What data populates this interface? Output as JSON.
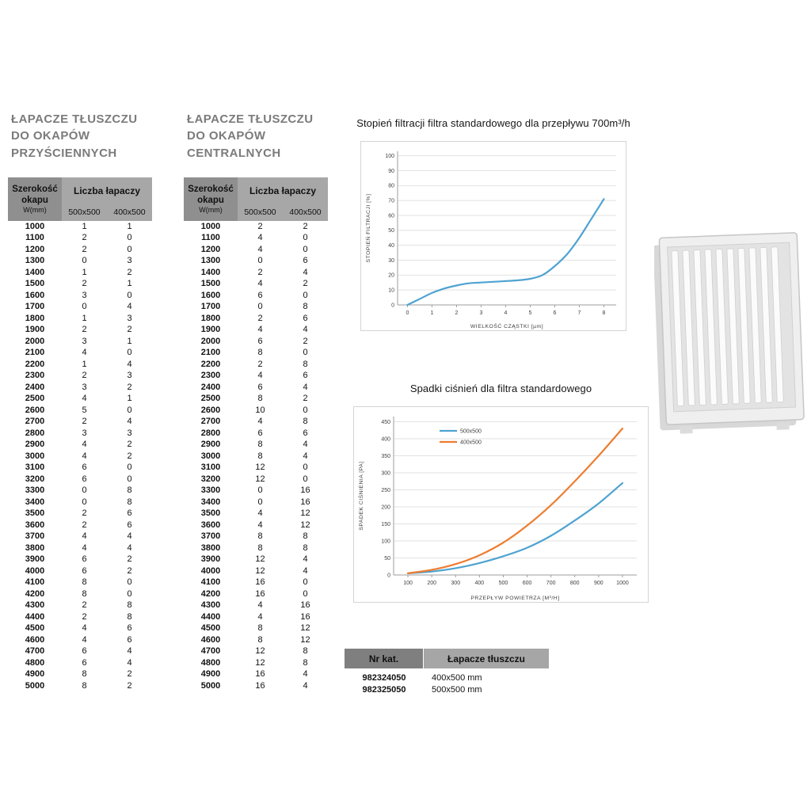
{
  "accent_colors": {
    "blue": "#4FA3D1",
    "orange": "#ED7D31",
    "header_gray_dark": "#8f8f8f",
    "header_gray": "#a7a7a7"
  },
  "left_table": {
    "title_lines": [
      "ŁAPACZE TŁUSZCZU",
      "DO OKAPÓW",
      "PRZYŚCIENNYCH"
    ],
    "header": {
      "col1_title": "Szerokość okapu",
      "col1_unit": "W(mm)",
      "group": "Liczba łapaczy",
      "sub1": "500x500",
      "sub2": "400x500"
    },
    "rows": [
      [
        1000,
        1,
        1
      ],
      [
        1100,
        2,
        0
      ],
      [
        1200,
        2,
        0
      ],
      [
        1300,
        0,
        3
      ],
      [
        1400,
        1,
        2
      ],
      [
        1500,
        2,
        1
      ],
      [
        1600,
        3,
        0
      ],
      [
        1700,
        0,
        4
      ],
      [
        1800,
        1,
        3
      ],
      [
        1900,
        2,
        2
      ],
      [
        2000,
        3,
        1
      ],
      [
        2100,
        4,
        0
      ],
      [
        2200,
        1,
        4
      ],
      [
        2300,
        2,
        3
      ],
      [
        2400,
        3,
        2
      ],
      [
        2500,
        4,
        1
      ],
      [
        2600,
        5,
        0
      ],
      [
        2700,
        2,
        4
      ],
      [
        2800,
        3,
        3
      ],
      [
        2900,
        4,
        2
      ],
      [
        3000,
        4,
        2
      ],
      [
        3100,
        6,
        0
      ],
      [
        3200,
        6,
        0
      ],
      [
        3300,
        0,
        8
      ],
      [
        3400,
        0,
        8
      ],
      [
        3500,
        2,
        6
      ],
      [
        3600,
        2,
        6
      ],
      [
        3700,
        4,
        4
      ],
      [
        3800,
        4,
        4
      ],
      [
        3900,
        6,
        2
      ],
      [
        4000,
        6,
        2
      ],
      [
        4100,
        8,
        0
      ],
      [
        4200,
        8,
        0
      ],
      [
        4300,
        2,
        8
      ],
      [
        4400,
        2,
        8
      ],
      [
        4500,
        4,
        6
      ],
      [
        4600,
        4,
        6
      ],
      [
        4700,
        6,
        4
      ],
      [
        4800,
        6,
        4
      ],
      [
        4900,
        8,
        2
      ],
      [
        5000,
        8,
        2
      ]
    ]
  },
  "center_table": {
    "title_lines": [
      "ŁAPACZE TŁUSZCZU",
      "DO OKAPÓW",
      "CENTRALNYCH"
    ],
    "header": {
      "col1_title": "Szerokość okapu",
      "col1_unit": "W(mm)",
      "group": "Liczba łapaczy",
      "sub1": "500x500",
      "sub2": "400x500"
    },
    "rows": [
      [
        1000,
        2,
        2
      ],
      [
        1100,
        4,
        0
      ],
      [
        1200,
        4,
        0
      ],
      [
        1300,
        0,
        6
      ],
      [
        1400,
        2,
        4
      ],
      [
        1500,
        4,
        2
      ],
      [
        1600,
        6,
        0
      ],
      [
        1700,
        0,
        8
      ],
      [
        1800,
        2,
        6
      ],
      [
        1900,
        4,
        4
      ],
      [
        2000,
        6,
        2
      ],
      [
        2100,
        8,
        0
      ],
      [
        2200,
        2,
        8
      ],
      [
        2300,
        4,
        6
      ],
      [
        2400,
        6,
        4
      ],
      [
        2500,
        8,
        2
      ],
      [
        2600,
        10,
        0
      ],
      [
        2700,
        4,
        8
      ],
      [
        2800,
        6,
        6
      ],
      [
        2900,
        8,
        4
      ],
      [
        3000,
        8,
        4
      ],
      [
        3100,
        12,
        0
      ],
      [
        3200,
        12,
        0
      ],
      [
        3300,
        0,
        16
      ],
      [
        3400,
        0,
        16
      ],
      [
        3500,
        4,
        12
      ],
      [
        3600,
        4,
        12
      ],
      [
        3700,
        8,
        8
      ],
      [
        3800,
        8,
        8
      ],
      [
        3900,
        12,
        4
      ],
      [
        4000,
        12,
        4
      ],
      [
        4100,
        16,
        0
      ],
      [
        4200,
        16,
        0
      ],
      [
        4300,
        4,
        16
      ],
      [
        4400,
        4,
        16
      ],
      [
        4500,
        8,
        12
      ],
      [
        4600,
        8,
        12
      ],
      [
        4700,
        12,
        8
      ],
      [
        4800,
        12,
        8
      ],
      [
        4900,
        16,
        4
      ],
      [
        5000,
        16,
        4
      ]
    ]
  },
  "chart_data": [
    {
      "type": "line",
      "title": "Stopień filtracji filtra standardowego dla przepływu 700m³/h",
      "xlabel": "WIELKOŚĆ CZĄSTKI [µm]",
      "ylabel": "STOPIEŃ FILTRACJI [%]",
      "xlim": [
        -0.4,
        8.5
      ],
      "ylim": [
        0,
        103
      ],
      "xticks": [
        0,
        1,
        2,
        3,
        4,
        5,
        6,
        7,
        8
      ],
      "yticks": [
        0,
        10,
        20,
        30,
        40,
        50,
        60,
        70,
        80,
        90,
        100
      ],
      "grid": "horizontal",
      "legend_show": false,
      "series": [
        {
          "name": "stopień filtracji",
          "color": "#4FA3D1",
          "x": [
            0,
            0.5,
            1,
            1.5,
            2,
            2.5,
            3,
            3.5,
            4,
            4.5,
            5,
            5.5,
            6,
            6.5,
            7,
            7.5,
            8
          ],
          "y": [
            0,
            4,
            8,
            11,
            13,
            14.5,
            15,
            15.5,
            16,
            16.5,
            17.5,
            20,
            26,
            34,
            45,
            58,
            71
          ]
        }
      ]
    },
    {
      "type": "line",
      "title": "Spadki ciśnień dla filtra standardowego",
      "xlabel": "PRZEPŁYW POWIETRZA [M³/H]",
      "ylabel": "SPADEK CIŚNIENIA [PA]",
      "xlim": [
        40,
        1060
      ],
      "ylim": [
        0,
        465
      ],
      "xticks": [
        100,
        200,
        300,
        400,
        500,
        600,
        700,
        800,
        900,
        1000
      ],
      "yticks": [
        0,
        50,
        100,
        150,
        200,
        250,
        300,
        350,
        400,
        450
      ],
      "grid": "horizontal",
      "legend_show": true,
      "legend_position": "top-center",
      "series": [
        {
          "name": "500x500",
          "color": "#4FA3D1",
          "x": [
            100,
            200,
            300,
            400,
            500,
            600,
            700,
            800,
            900,
            1000
          ],
          "y": [
            5,
            10,
            20,
            35,
            55,
            80,
            115,
            160,
            210,
            270
          ]
        },
        {
          "name": "400x500",
          "color": "#ED7D31",
          "x": [
            100,
            200,
            300,
            400,
            500,
            600,
            700,
            800,
            900,
            1000
          ],
          "y": [
            5,
            15,
            32,
            58,
            95,
            145,
            205,
            275,
            350,
            430
          ]
        }
      ]
    }
  ],
  "catalog_table": {
    "headers": [
      "Nr kat.",
      "Łapacze tłuszczu"
    ],
    "rows": [
      [
        "982324050",
        "400x500 mm"
      ],
      [
        "982325050",
        "500x500 mm"
      ]
    ]
  },
  "product_image": {
    "name": "grease-filter-grille-render"
  }
}
